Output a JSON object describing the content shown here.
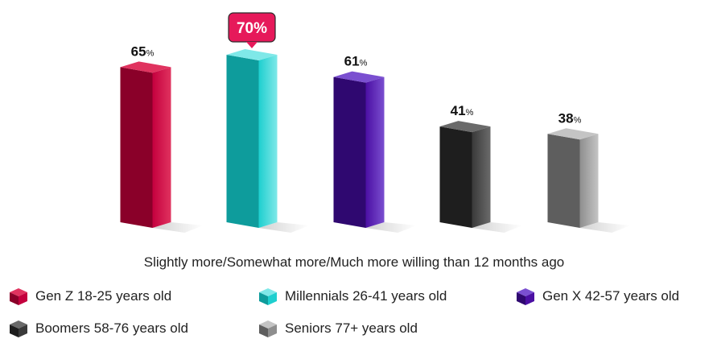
{
  "chart_data": {
    "type": "bar",
    "title": "",
    "xlabel": "Slightly more/Somewhat more/Much more willing than 12 months ago",
    "ylabel": "",
    "ylim": [
      0,
      70
    ],
    "grid": false,
    "legend_placement": "bottom",
    "value_suffix": "%",
    "categories": [
      "Gen Z 18-25 years old",
      "Millennials 26-41 years old",
      "Gen X 42-57 years old",
      "Boomers 58-76 years old",
      "Seniors 77+ years old"
    ],
    "series": [
      {
        "values": [
          65,
          70,
          61,
          41,
          38
        ]
      }
    ],
    "highlight": {
      "index": 1,
      "label": "70%"
    },
    "colors": [
      "#C4003E",
      "#1ECFCF",
      "#4B0FA3",
      "#3A3A3A",
      "#8E8E8E"
    ],
    "colors_dark": [
      "#8A0029",
      "#0E9C9C",
      "#2F0870",
      "#1E1E1E",
      "#5E5E5E"
    ],
    "colors_light": [
      "#E0335F",
      "#7FE8E8",
      "#7A4FD0",
      "#6A6A6A",
      "#C4C4C4"
    ]
  },
  "legend": {
    "items": [
      {
        "label": "Gen Z 18-25 years old",
        "icon": "cube-icon"
      },
      {
        "label": "Millennials 26-41 years old",
        "icon": "cube-icon"
      },
      {
        "label": "Gen X 42-57 years old",
        "icon": "cube-icon"
      },
      {
        "label": "Boomers 58-76 years old",
        "icon": "cube-icon"
      },
      {
        "label": "Seniors 77+ years old",
        "icon": "cube-icon"
      }
    ]
  }
}
